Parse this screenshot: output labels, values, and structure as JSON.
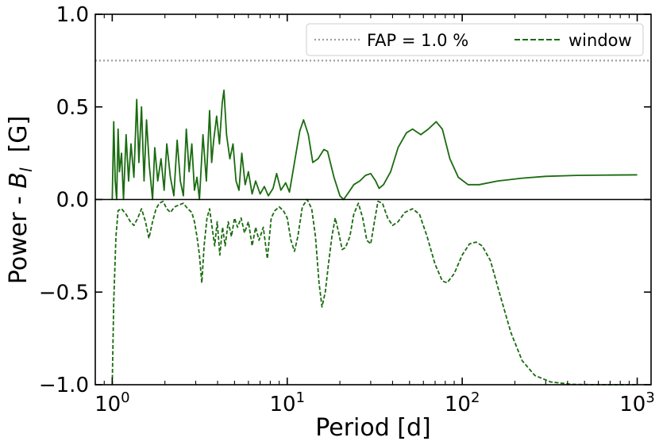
{
  "chart_data": {
    "type": "line",
    "x_scale": "log",
    "xlim": [
      0.8,
      1200
    ],
    "ylim": [
      -1.0,
      1.0
    ],
    "xlabel": "Period [d]",
    "ylabel": "Power - B_l  [G]",
    "ylabel_parts": {
      "main": "Power - ",
      "symbol": "B",
      "subscript": "l",
      "unit": "  [G]"
    },
    "x_ticks": [
      {
        "value": 1,
        "base": "10",
        "exp": "0"
      },
      {
        "value": 10,
        "base": "10",
        "exp": "1"
      },
      {
        "value": 100,
        "base": "10",
        "exp": "2"
      },
      {
        "value": 1000,
        "base": "10",
        "exp": "3"
      }
    ],
    "y_ticks": [
      {
        "value": 1.0,
        "label": "1.0"
      },
      {
        "value": 0.5,
        "label": "0.5"
      },
      {
        "value": 0.0,
        "label": "0.0"
      },
      {
        "value": -0.5,
        "label": "−0.5"
      },
      {
        "value": -1.0,
        "label": "−1.0"
      }
    ],
    "zero_line": 0.0,
    "fap": {
      "name": "FAP = 1.0 %",
      "value": 0.75,
      "color": "#9e9e9e"
    },
    "legend": {
      "placement": "top-right",
      "entries": [
        "FAP = 1.0 %",
        "window"
      ]
    },
    "series": [
      {
        "name": "Power",
        "color": "#1a6b10",
        "style": "solid",
        "points": [
          [
            1.0,
            0.0
          ],
          [
            1.02,
            0.42
          ],
          [
            1.04,
            0.1
          ],
          [
            1.06,
            0.0
          ],
          [
            1.08,
            0.38
          ],
          [
            1.1,
            0.15
          ],
          [
            1.13,
            0.25
          ],
          [
            1.16,
            0.0
          ],
          [
            1.2,
            0.35
          ],
          [
            1.24,
            0.1
          ],
          [
            1.28,
            0.3
          ],
          [
            1.33,
            0.12
          ],
          [
            1.38,
            0.54
          ],
          [
            1.42,
            0.2
          ],
          [
            1.47,
            0.5
          ],
          [
            1.52,
            0.1
          ],
          [
            1.57,
            0.43
          ],
          [
            1.63,
            0.18
          ],
          [
            1.7,
            0.0
          ],
          [
            1.75,
            0.28
          ],
          [
            1.82,
            0.1
          ],
          [
            1.9,
            0.22
          ],
          [
            1.98,
            0.05
          ],
          [
            2.05,
            0.3
          ],
          [
            2.15,
            0.12
          ],
          [
            2.25,
            0.02
          ],
          [
            2.35,
            0.32
          ],
          [
            2.45,
            0.1
          ],
          [
            2.55,
            0.02
          ],
          [
            2.65,
            0.38
          ],
          [
            2.75,
            0.15
          ],
          [
            2.85,
            0.3
          ],
          [
            2.95,
            0.05
          ],
          [
            3.05,
            0.12
          ],
          [
            3.15,
            0.0
          ],
          [
            3.3,
            0.35
          ],
          [
            3.45,
            0.1
          ],
          [
            3.6,
            0.48
          ],
          [
            3.7,
            0.2
          ],
          [
            3.8,
            0.32
          ],
          [
            3.95,
            0.45
          ],
          [
            4.1,
            0.3
          ],
          [
            4.25,
            0.52
          ],
          [
            4.35,
            0.59
          ],
          [
            4.5,
            0.35
          ],
          [
            4.7,
            0.22
          ],
          [
            4.9,
            0.3
          ],
          [
            5.1,
            0.1
          ],
          [
            5.3,
            0.05
          ],
          [
            5.5,
            0.25
          ],
          [
            5.75,
            0.08
          ],
          [
            6.0,
            0.15
          ],
          [
            6.3,
            0.03
          ],
          [
            6.6,
            0.1
          ],
          [
            7.0,
            0.03
          ],
          [
            7.4,
            0.07
          ],
          [
            7.8,
            0.02
          ],
          [
            8.3,
            0.06
          ],
          [
            8.7,
            0.14
          ],
          [
            9.2,
            0.05
          ],
          [
            9.8,
            0.09
          ],
          [
            10.3,
            0.04
          ],
          [
            11.0,
            0.2
          ],
          [
            11.8,
            0.37
          ],
          [
            12.4,
            0.43
          ],
          [
            13.2,
            0.35
          ],
          [
            14.0,
            0.2
          ],
          [
            15.0,
            0.22
          ],
          [
            16.2,
            0.27
          ],
          [
            17.0,
            0.26
          ],
          [
            18.5,
            0.12
          ],
          [
            20.0,
            0.02
          ],
          [
            21.0,
            0.0
          ],
          [
            22.5,
            0.04
          ],
          [
            24.0,
            0.08
          ],
          [
            26.0,
            0.1
          ],
          [
            28.0,
            0.13
          ],
          [
            30.0,
            0.14
          ],
          [
            32.0,
            0.1
          ],
          [
            33.5,
            0.06
          ],
          [
            35.5,
            0.08
          ],
          [
            39.0,
            0.15
          ],
          [
            43.0,
            0.28
          ],
          [
            48.0,
            0.36
          ],
          [
            52.0,
            0.38
          ],
          [
            58.0,
            0.35
          ],
          [
            64.0,
            0.38
          ],
          [
            71.0,
            0.42
          ],
          [
            77.0,
            0.38
          ],
          [
            85.0,
            0.22
          ],
          [
            95.0,
            0.12
          ],
          [
            108.0,
            0.08
          ],
          [
            125.0,
            0.08
          ],
          [
            160.0,
            0.1
          ],
          [
            220.0,
            0.115
          ],
          [
            300.0,
            0.125
          ],
          [
            450.0,
            0.13
          ],
          [
            700.0,
            0.132
          ],
          [
            1000.0,
            0.133
          ]
        ]
      },
      {
        "name": "window",
        "color": "#1a6b10",
        "style": "dashed",
        "points": [
          [
            1.0,
            -1.0
          ],
          [
            1.02,
            -0.55
          ],
          [
            1.05,
            -0.2
          ],
          [
            1.08,
            -0.06
          ],
          [
            1.13,
            -0.05
          ],
          [
            1.2,
            -0.08
          ],
          [
            1.27,
            -0.12
          ],
          [
            1.33,
            -0.14
          ],
          [
            1.4,
            -0.1
          ],
          [
            1.47,
            -0.05
          ],
          [
            1.55,
            -0.12
          ],
          [
            1.62,
            -0.21
          ],
          [
            1.7,
            -0.12
          ],
          [
            1.78,
            -0.05
          ],
          [
            1.86,
            -0.02
          ],
          [
            1.95,
            -0.01
          ],
          [
            2.05,
            -0.05
          ],
          [
            2.15,
            -0.07
          ],
          [
            2.27,
            -0.04
          ],
          [
            2.4,
            -0.03
          ],
          [
            2.55,
            -0.02
          ],
          [
            2.7,
            -0.05
          ],
          [
            2.85,
            -0.07
          ],
          [
            2.95,
            -0.12
          ],
          [
            3.05,
            -0.2
          ],
          [
            3.15,
            -0.3
          ],
          [
            3.25,
            -0.45
          ],
          [
            3.35,
            -0.25
          ],
          [
            3.48,
            -0.1
          ],
          [
            3.6,
            -0.05
          ],
          [
            3.72,
            -0.15
          ],
          [
            3.85,
            -0.25
          ],
          [
            3.98,
            -0.12
          ],
          [
            4.12,
            -0.3
          ],
          [
            4.27,
            -0.15
          ],
          [
            4.42,
            -0.25
          ],
          [
            4.6,
            -0.12
          ],
          [
            4.8,
            -0.2
          ],
          [
            5.0,
            -0.1
          ],
          [
            5.2,
            -0.15
          ],
          [
            5.45,
            -0.1
          ],
          [
            5.7,
            -0.18
          ],
          [
            6.0,
            -0.12
          ],
          [
            6.3,
            -0.25
          ],
          [
            6.6,
            -0.15
          ],
          [
            6.9,
            -0.22
          ],
          [
            7.3,
            -0.15
          ],
          [
            7.7,
            -0.32
          ],
          [
            8.1,
            -0.1
          ],
          [
            8.5,
            -0.06
          ],
          [
            9.0,
            -0.04
          ],
          [
            9.5,
            -0.06
          ],
          [
            10.0,
            -0.1
          ],
          [
            10.5,
            -0.22
          ],
          [
            11.0,
            -0.28
          ],
          [
            11.5,
            -0.2
          ],
          [
            12.2,
            -0.04
          ],
          [
            13.0,
            -0.0
          ],
          [
            13.8,
            -0.05
          ],
          [
            14.5,
            -0.2
          ],
          [
            15.2,
            -0.45
          ],
          [
            15.8,
            -0.58
          ],
          [
            16.5,
            -0.5
          ],
          [
            17.2,
            -0.35
          ],
          [
            18.0,
            -0.2
          ],
          [
            18.8,
            -0.1
          ],
          [
            19.7,
            -0.18
          ],
          [
            20.6,
            -0.27
          ],
          [
            21.5,
            -0.26
          ],
          [
            22.8,
            -0.2
          ],
          [
            24.0,
            -0.08
          ],
          [
            25.5,
            -0.02
          ],
          [
            27.0,
            -0.1
          ],
          [
            28.5,
            -0.22
          ],
          [
            30.0,
            -0.24
          ],
          [
            31.5,
            -0.12
          ],
          [
            33.0,
            -0.01
          ],
          [
            35.0,
            -0.02
          ],
          [
            37.5,
            -0.1
          ],
          [
            40.0,
            -0.14
          ],
          [
            43.0,
            -0.12
          ],
          [
            47.0,
            -0.07
          ],
          [
            52.0,
            -0.05
          ],
          [
            57.0,
            -0.08
          ],
          [
            63.0,
            -0.2
          ],
          [
            70.0,
            -0.35
          ],
          [
            77.0,
            -0.44
          ],
          [
            82.0,
            -0.45
          ],
          [
            90.0,
            -0.4
          ],
          [
            100.0,
            -0.3
          ],
          [
            110.0,
            -0.24
          ],
          [
            120.0,
            -0.23
          ],
          [
            130.0,
            -0.25
          ],
          [
            145.0,
            -0.33
          ],
          [
            165.0,
            -0.52
          ],
          [
            190.0,
            -0.72
          ],
          [
            220.0,
            -0.87
          ],
          [
            260.0,
            -0.95
          ],
          [
            320.0,
            -0.985
          ],
          [
            420.0,
            -0.998
          ],
          [
            600.0,
            -1.0
          ],
          [
            1000.0,
            -1.0
          ]
        ]
      }
    ]
  }
}
